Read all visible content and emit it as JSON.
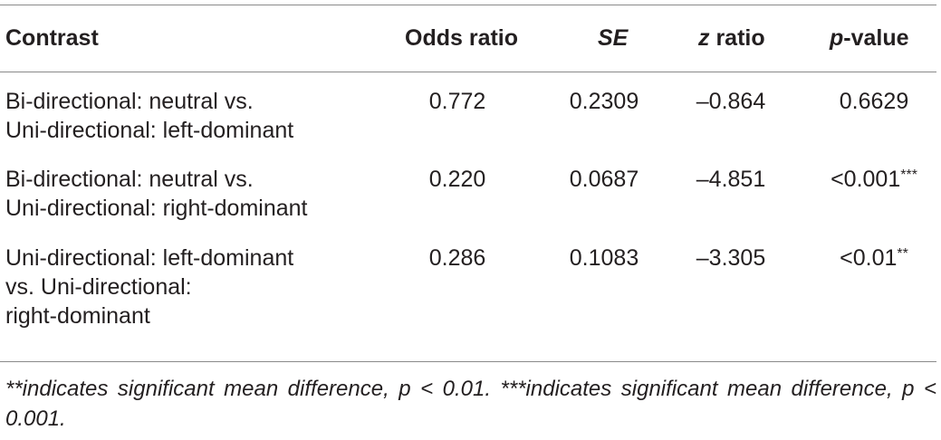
{
  "table": {
    "headers": {
      "contrast": "Contrast",
      "odds_ratio": "Odds ratio",
      "se": "SE",
      "z_ratio_letter": "z",
      "z_ratio_rest": " ratio",
      "p_value_letter": "p",
      "p_value_rest": "-value"
    },
    "rows": [
      {
        "contrast_lines": [
          "Bi-directional: neutral vs.",
          "Uni-directional: left-dominant"
        ],
        "odds_ratio": "0.772",
        "se": "0.2309",
        "z_ratio": "–0.864",
        "p_value": "0.6629",
        "p_sup": ""
      },
      {
        "contrast_lines": [
          "Bi-directional: neutral vs.",
          "Uni-directional: right-dominant"
        ],
        "odds_ratio": "0.220",
        "se": "0.0687",
        "z_ratio": "–4.851",
        "p_value": "<0.001",
        "p_sup": "***"
      },
      {
        "contrast_lines": [
          "Uni-directional: left-dominant",
          "vs. Uni-directional:",
          "right-dominant"
        ],
        "odds_ratio": "0.286",
        "se": "0.1083",
        "z_ratio": "–3.305",
        "p_value": "<0.01",
        "p_sup": "**"
      }
    ]
  },
  "footnote": "**indicates significant mean difference, p < 0.01. ***indicates significant mean difference, p < 0.001."
}
